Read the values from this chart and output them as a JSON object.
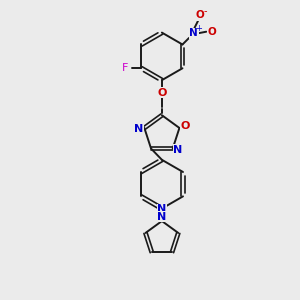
{
  "background_color": "#ebebeb",
  "bond_color": "#1a1a1a",
  "nitrogen_color": "#0000cc",
  "oxygen_color": "#cc0000",
  "fluorine_color": "#cc00cc",
  "figsize": [
    3.0,
    3.0
  ],
  "dpi": 100,
  "xlim": [
    0,
    10
  ],
  "ylim": [
    0,
    10
  ]
}
